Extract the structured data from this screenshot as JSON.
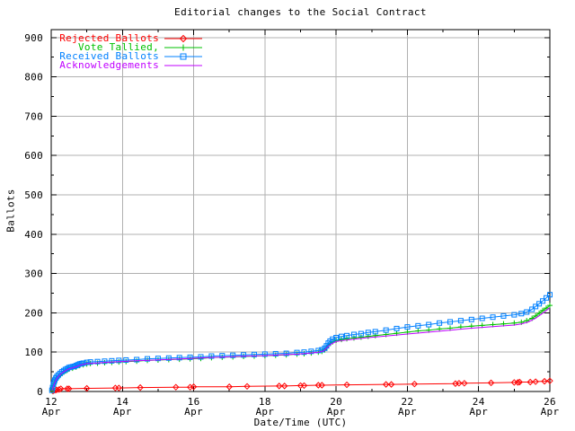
{
  "chart_data": {
    "type": "line",
    "title": "Editorial changes to the Social Contract",
    "xlabel": "Date/Time (UTC)",
    "ylabel": "Ballots",
    "xlim": [
      12,
      26
    ],
    "ylim": [
      0,
      920
    ],
    "grid": true,
    "grid_color": "#b0b0b0",
    "border_color": "#000000",
    "background_color": "#ffffff",
    "legend_position": "top-left-inside",
    "x_major_ticks": [
      12,
      14,
      16,
      18,
      20,
      22,
      24,
      26
    ],
    "x_tick_labels": [
      [
        "12",
        "Apr"
      ],
      [
        "14",
        "Apr"
      ],
      [
        "16",
        "Apr"
      ],
      [
        "18",
        "Apr"
      ],
      [
        "20",
        "Apr"
      ],
      [
        "22",
        "Apr"
      ],
      [
        "24",
        "Apr"
      ],
      [
        "26",
        "Apr"
      ]
    ],
    "x_minor_ticks": [
      13,
      15,
      17,
      19,
      21,
      23,
      25
    ],
    "y_major_ticks": [
      0,
      100,
      200,
      300,
      400,
      500,
      600,
      700,
      800,
      900
    ],
    "y_tick_labels": [
      "0",
      "100",
      "200",
      "300",
      "400",
      "500",
      "600",
      "700",
      "800",
      "900"
    ],
    "y_minor_ticks": [
      50,
      150,
      250,
      350,
      450,
      550,
      650,
      750,
      850
    ],
    "series": [
      {
        "name": "Rejected Ballots",
        "color": "#ff0000",
        "marker": "diamond-open",
        "points": [
          [
            12.05,
            1
          ],
          [
            12.1,
            3
          ],
          [
            12.15,
            4
          ],
          [
            12.22,
            5
          ],
          [
            12.27,
            7
          ],
          [
            12.45,
            7
          ],
          [
            12.5,
            7
          ],
          [
            13,
            8
          ],
          [
            13.8,
            9
          ],
          [
            13.9,
            9
          ],
          [
            14.5,
            10
          ],
          [
            15.5,
            11
          ],
          [
            15.9,
            11
          ],
          [
            16,
            12
          ],
          [
            17,
            12
          ],
          [
            17.5,
            13
          ],
          [
            18.4,
            14
          ],
          [
            18.55,
            14
          ],
          [
            19,
            15
          ],
          [
            19.1,
            15
          ],
          [
            19.5,
            16
          ],
          [
            19.6,
            16
          ],
          [
            20.3,
            17
          ],
          [
            21.4,
            18
          ],
          [
            21.55,
            18
          ],
          [
            22.2,
            19
          ],
          [
            23.35,
            20
          ],
          [
            23.45,
            21
          ],
          [
            23.6,
            21
          ],
          [
            24.35,
            22
          ],
          [
            25,
            23
          ],
          [
            25.1,
            23
          ],
          [
            25.15,
            24
          ],
          [
            25.45,
            24
          ],
          [
            25.6,
            25
          ],
          [
            25.85,
            26
          ],
          [
            26,
            27
          ]
        ]
      },
      {
        "name": "Vote Tallied,",
        "color": "#00c000",
        "marker": "plus",
        "points": [
          [
            12.02,
            2
          ],
          [
            12.04,
            7
          ],
          [
            12.06,
            14
          ],
          [
            12.08,
            20
          ],
          [
            12.1,
            25
          ],
          [
            12.13,
            30
          ],
          [
            12.16,
            34
          ],
          [
            12.2,
            38
          ],
          [
            12.25,
            42
          ],
          [
            12.3,
            46
          ],
          [
            12.35,
            49
          ],
          [
            12.4,
            52
          ],
          [
            12.45,
            54
          ],
          [
            12.5,
            57
          ],
          [
            12.6,
            59
          ],
          [
            12.7,
            62
          ],
          [
            12.8,
            66
          ],
          [
            12.9,
            68
          ],
          [
            13,
            70
          ],
          [
            13.1,
            71
          ],
          [
            13.3,
            72
          ],
          [
            13.5,
            73
          ],
          [
            13.7,
            74
          ],
          [
            13.9,
            75
          ],
          [
            14.1,
            76
          ],
          [
            14.4,
            77
          ],
          [
            14.7,
            79
          ],
          [
            15,
            80
          ],
          [
            15.3,
            81
          ],
          [
            15.6,
            82
          ],
          [
            15.9,
            83
          ],
          [
            16.2,
            84
          ],
          [
            16.5,
            86
          ],
          [
            16.8,
            87
          ],
          [
            17.1,
            88
          ],
          [
            17.4,
            89
          ],
          [
            17.7,
            90
          ],
          [
            18,
            91
          ],
          [
            18.3,
            92
          ],
          [
            18.6,
            93
          ],
          [
            18.9,
            95
          ],
          [
            19.1,
            96
          ],
          [
            19.3,
            98
          ],
          [
            19.5,
            100
          ],
          [
            19.6,
            102
          ],
          [
            19.68,
            106
          ],
          [
            19.73,
            111
          ],
          [
            19.78,
            117
          ],
          [
            19.83,
            122
          ],
          [
            19.9,
            126
          ],
          [
            20,
            130
          ],
          [
            20.15,
            132
          ],
          [
            20.3,
            134
          ],
          [
            20.5,
            136
          ],
          [
            20.7,
            138
          ],
          [
            20.9,
            140
          ],
          [
            21.1,
            142
          ],
          [
            21.4,
            145
          ],
          [
            21.7,
            148
          ],
          [
            22,
            151
          ],
          [
            22.3,
            154
          ],
          [
            22.6,
            156
          ],
          [
            22.9,
            159
          ],
          [
            23.2,
            161
          ],
          [
            23.5,
            164
          ],
          [
            23.8,
            166
          ],
          [
            24.1,
            168
          ],
          [
            24.4,
            170
          ],
          [
            24.7,
            172
          ],
          [
            25,
            174
          ],
          [
            25.2,
            176
          ],
          [
            25.35,
            180
          ],
          [
            25.5,
            186
          ],
          [
            25.6,
            192
          ],
          [
            25.7,
            199
          ],
          [
            25.8,
            206
          ],
          [
            25.9,
            212
          ],
          [
            26,
            219
          ]
        ]
      },
      {
        "name": "Received Ballots",
        "color": "#0080ff",
        "marker": "square-open",
        "points": [
          [
            12.02,
            3
          ],
          [
            12.04,
            10
          ],
          [
            12.06,
            18
          ],
          [
            12.08,
            24
          ],
          [
            12.1,
            29
          ],
          [
            12.13,
            34
          ],
          [
            12.16,
            38
          ],
          [
            12.2,
            42
          ],
          [
            12.25,
            46
          ],
          [
            12.3,
            50
          ],
          [
            12.35,
            53
          ],
          [
            12.4,
            56
          ],
          [
            12.45,
            58
          ],
          [
            12.5,
            61
          ],
          [
            12.55,
            62
          ],
          [
            12.6,
            63
          ],
          [
            12.65,
            64
          ],
          [
            12.7,
            66
          ],
          [
            12.75,
            68
          ],
          [
            12.8,
            70
          ],
          [
            12.85,
            71
          ],
          [
            12.9,
            72
          ],
          [
            13,
            74
          ],
          [
            13.1,
            75
          ],
          [
            13.3,
            76
          ],
          [
            13.5,
            77
          ],
          [
            13.7,
            78
          ],
          [
            13.9,
            79
          ],
          [
            14.1,
            80
          ],
          [
            14.4,
            81
          ],
          [
            14.7,
            83
          ],
          [
            15,
            84
          ],
          [
            15.3,
            85
          ],
          [
            15.6,
            86
          ],
          [
            15.9,
            87
          ],
          [
            16.2,
            88
          ],
          [
            16.5,
            90
          ],
          [
            16.8,
            91
          ],
          [
            17.1,
            92
          ],
          [
            17.4,
            93
          ],
          [
            17.7,
            94
          ],
          [
            18,
            95
          ],
          [
            18.3,
            96
          ],
          [
            18.6,
            97
          ],
          [
            18.9,
            99
          ],
          [
            19.1,
            100
          ],
          [
            19.3,
            102
          ],
          [
            19.5,
            104
          ],
          [
            19.6,
            106
          ],
          [
            19.68,
            110
          ],
          [
            19.73,
            116
          ],
          [
            19.78,
            123
          ],
          [
            19.83,
            128
          ],
          [
            19.9,
            133
          ],
          [
            20,
            137
          ],
          [
            20.15,
            140
          ],
          [
            20.3,
            142
          ],
          [
            20.5,
            145
          ],
          [
            20.7,
            147
          ],
          [
            20.9,
            150
          ],
          [
            21.1,
            152
          ],
          [
            21.4,
            156
          ],
          [
            21.7,
            160
          ],
          [
            22,
            164
          ],
          [
            22.3,
            167
          ],
          [
            22.6,
            170
          ],
          [
            22.9,
            174
          ],
          [
            23.2,
            177
          ],
          [
            23.5,
            180
          ],
          [
            23.8,
            183
          ],
          [
            24.1,
            186
          ],
          [
            24.4,
            189
          ],
          [
            24.7,
            192
          ],
          [
            25,
            195
          ],
          [
            25.2,
            198
          ],
          [
            25.35,
            202
          ],
          [
            25.5,
            209
          ],
          [
            25.6,
            216
          ],
          [
            25.7,
            223
          ],
          [
            25.8,
            230
          ],
          [
            25.9,
            238
          ],
          [
            26,
            246
          ]
        ]
      },
      {
        "name": "Acknowledgements",
        "color": "#c000ff",
        "marker": "none",
        "points": [
          [
            12.02,
            2
          ],
          [
            12.05,
            9
          ],
          [
            12.08,
            18
          ],
          [
            12.12,
            26
          ],
          [
            12.16,
            33
          ],
          [
            12.2,
            38
          ],
          [
            12.25,
            43
          ],
          [
            12.3,
            47
          ],
          [
            12.4,
            53
          ],
          [
            12.5,
            58
          ],
          [
            12.6,
            60
          ],
          [
            12.7,
            63
          ],
          [
            12.8,
            67
          ],
          [
            12.9,
            69
          ],
          [
            13,
            71
          ],
          [
            13.2,
            72
          ],
          [
            13.5,
            74
          ],
          [
            13.9,
            76
          ],
          [
            14.4,
            78
          ],
          [
            14.9,
            80
          ],
          [
            15.4,
            82
          ],
          [
            15.9,
            84
          ],
          [
            16.4,
            86
          ],
          [
            16.9,
            88
          ],
          [
            17.4,
            90
          ],
          [
            17.9,
            91
          ],
          [
            18.4,
            93
          ],
          [
            18.9,
            95
          ],
          [
            19.2,
            97
          ],
          [
            19.5,
            100
          ],
          [
            19.65,
            103
          ],
          [
            19.75,
            112
          ],
          [
            19.85,
            120
          ],
          [
            20,
            127
          ],
          [
            20.2,
            130
          ],
          [
            20.5,
            133
          ],
          [
            20.9,
            137
          ],
          [
            21.4,
            141
          ],
          [
            22,
            146
          ],
          [
            22.6,
            151
          ],
          [
            23.2,
            156
          ],
          [
            23.8,
            161
          ],
          [
            24.4,
            165
          ],
          [
            25,
            169
          ],
          [
            25.2,
            172
          ],
          [
            25.4,
            177
          ],
          [
            25.6,
            186
          ],
          [
            25.8,
            199
          ],
          [
            25.9,
            206
          ],
          [
            26,
            213
          ]
        ]
      }
    ]
  }
}
